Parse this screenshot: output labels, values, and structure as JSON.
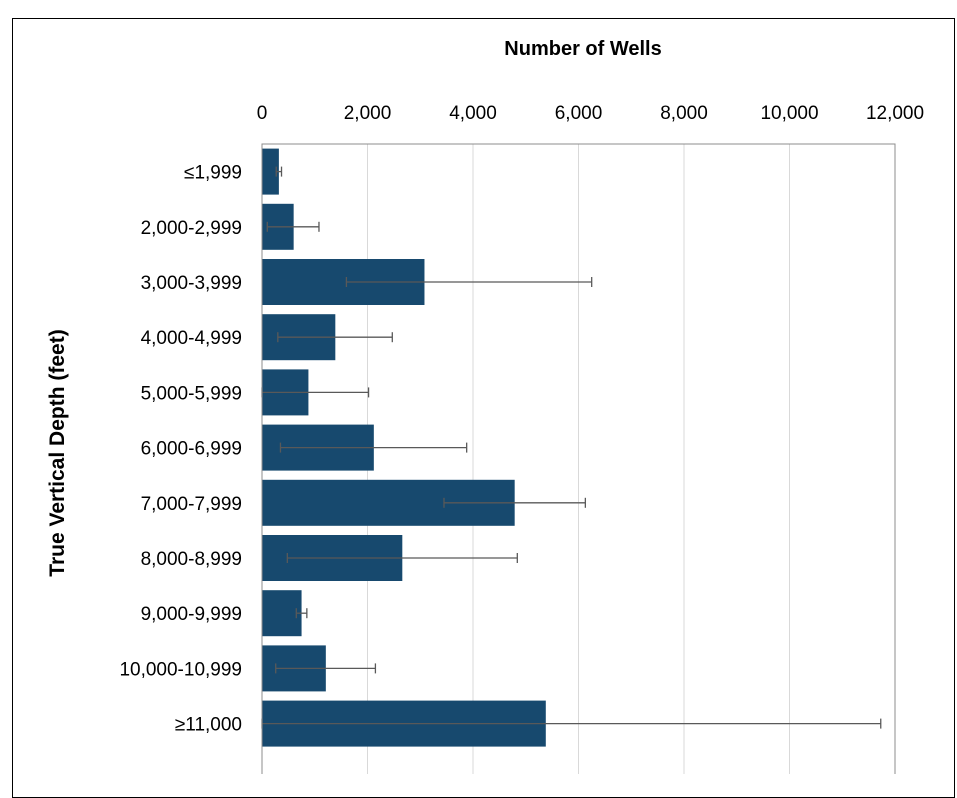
{
  "chart_data": {
    "type": "bar",
    "orientation": "horizontal",
    "title": "Number of Wells",
    "xlabel": "Number of Wells",
    "ylabel": "True Vertical Depth (feet)",
    "xlim": [
      0,
      12000
    ],
    "x_ticks": [
      "0",
      "2,000",
      "4,000",
      "6,000",
      "8,000",
      "10,000",
      "12,000"
    ],
    "x_axis_position": "top",
    "grid": "vertical",
    "bar_color": "#17496e",
    "errorbar_color": "#595959",
    "categories": [
      "≤1,999",
      "2,000-2,999",
      "3,000-3,999",
      "4,000-4,999",
      "5,000-5,999",
      "6,000-6,999",
      "7,000-7,999",
      "8,000-8,999",
      "9,000-9,999",
      "10,000-10,999",
      "≥11,000"
    ],
    "values": [
      320,
      600,
      3080,
      1390,
      880,
      2120,
      4790,
      2660,
      750,
      1210,
      5380
    ],
    "error_low": [
      270,
      100,
      1600,
      300,
      0,
      350,
      3450,
      480,
      650,
      260,
      0
    ],
    "error_high": [
      370,
      1080,
      6250,
      2470,
      2020,
      3880,
      6130,
      4840,
      850,
      2150,
      11730
    ]
  }
}
